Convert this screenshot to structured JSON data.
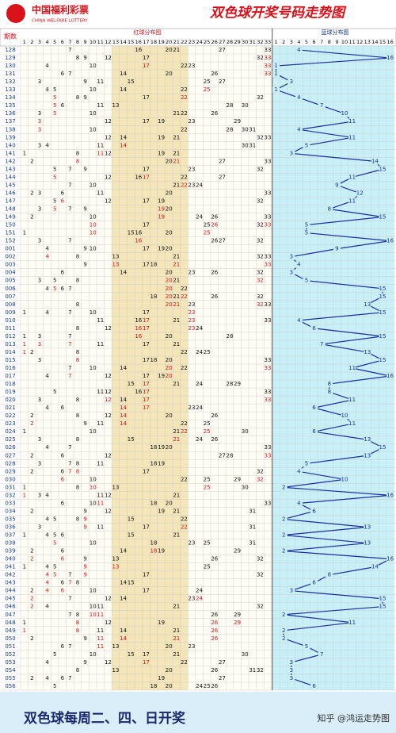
{
  "header": {
    "logo_cn": "中国福利彩票",
    "logo_en": "CHINA WELFARE LOTTERY",
    "title": "双色球开奖号码走势图"
  },
  "columns": {
    "issue_label": "期数",
    "red_label": "红球分布图",
    "blue_label": "蓝球分布图",
    "red_numbers": [
      1,
      2,
      3,
      4,
      5,
      6,
      7,
      8,
      9,
      10,
      11,
      12,
      13,
      14,
      15,
      16,
      17,
      18,
      19,
      20,
      21,
      22,
      23,
      24,
      25,
      26,
      27,
      28,
      29,
      30,
      31,
      32,
      33
    ],
    "blue_numbers": [
      1,
      2,
      3,
      4,
      5,
      6,
      7,
      8,
      9,
      10,
      11,
      12,
      13,
      14,
      15,
      16
    ]
  },
  "rows": [
    {
      "issue": "128",
      "reds": [
        7,
        16,
        20,
        21,
        27,
        33
      ],
      "blue": 4
    },
    {
      "issue": "129",
      "reds": [
        8,
        9,
        12,
        17,
        32,
        33
      ],
      "blue": 16
    },
    {
      "issue": "130",
      "reds": [
        4,
        10,
        17,
        22,
        23,
        33
      ],
      "blue": 1
    },
    {
      "issue": "131",
      "reds": [
        6,
        7,
        14,
        20,
        26,
        33
      ],
      "blue": 1
    },
    {
      "issue": "132",
      "reds": [
        3,
        9,
        11,
        15,
        25,
        27
      ],
      "blue": 3
    },
    {
      "issue": "133",
      "reds": [
        4,
        5,
        10,
        14,
        22,
        25
      ],
      "blue": 1
    },
    {
      "issue": "134",
      "reds": [
        5,
        8,
        9,
        17,
        22,
        32
      ],
      "blue": 4
    },
    {
      "issue": "135",
      "reds": [
        5,
        6,
        11,
        13,
        28,
        30
      ],
      "blue": 7
    },
    {
      "issue": "136",
      "reds": [
        3,
        5,
        10,
        21,
        22,
        26
      ],
      "blue": 10
    },
    {
      "issue": "137",
      "reds": [
        3,
        12,
        17,
        19,
        23,
        29
      ],
      "blue": 11
    },
    {
      "issue": "138",
      "reds": [
        3,
        10,
        22,
        28,
        30,
        31
      ],
      "blue": 4
    },
    {
      "issue": "139",
      "reds": [
        12,
        14,
        19,
        21,
        32,
        33
      ],
      "blue": 11
    },
    {
      "issue": "140",
      "reds": [
        3,
        4,
        11,
        14,
        30,
        31
      ],
      "blue": 5
    },
    {
      "issue": "141",
      "reds": [
        1,
        8,
        11,
        12,
        19,
        21
      ],
      "blue": 3
    },
    {
      "issue": "142",
      "reds": [
        2,
        8,
        20,
        21,
        27,
        33
      ],
      "blue": 14
    },
    {
      "issue": "143",
      "reds": [
        5,
        7,
        9,
        17,
        23,
        32
      ],
      "blue": 15
    },
    {
      "issue": "144",
      "reds": [
        5,
        12,
        16,
        17,
        22,
        27
      ],
      "blue": 11
    },
    {
      "issue": "145",
      "reds": [
        7,
        10,
        21,
        22,
        23,
        24
      ],
      "blue": 9
    },
    {
      "issue": "146",
      "reds": [
        2,
        3,
        6,
        11,
        20,
        33
      ],
      "blue": 12
    },
    {
      "issue": "147",
      "reds": [
        5,
        6,
        12,
        17,
        19,
        32
      ],
      "blue": 11
    },
    {
      "issue": "148",
      "reds": [
        3,
        5,
        7,
        9,
        19,
        20
      ],
      "blue": 8
    },
    {
      "issue": "149",
      "reds": [
        2,
        10,
        19,
        24,
        26,
        33
      ],
      "blue": 15
    },
    {
      "issue": "150",
      "reds": [
        10,
        17,
        25,
        26,
        32,
        33
      ],
      "blue": 5
    },
    {
      "issue": "151",
      "reds": [
        1,
        10,
        15,
        16,
        20,
        25
      ],
      "blue": 5
    },
    {
      "issue": "152",
      "reds": [
        3,
        7,
        16,
        26,
        27,
        32
      ],
      "blue": 16
    },
    {
      "issue": "001",
      "reds": [
        4,
        9,
        10,
        17,
        19,
        20
      ],
      "blue": 9
    },
    {
      "issue": "002",
      "reds": [
        4,
        8,
        13,
        21,
        32,
        33
      ],
      "blue": 3
    },
    {
      "issue": "003",
      "reds": [
        9,
        13,
        17,
        18,
        21,
        33
      ],
      "blue": 4
    },
    {
      "issue": "004",
      "reds": [
        6,
        14,
        20,
        23,
        26,
        32
      ],
      "blue": 3
    },
    {
      "issue": "005",
      "reds": [
        3,
        5,
        8,
        20,
        21,
        32
      ],
      "blue": 5
    },
    {
      "issue": "006",
      "reds": [
        4,
        5,
        6,
        7,
        20,
        22
      ],
      "blue": 15
    },
    {
      "issue": "007",
      "reds": [
        18,
        20,
        21,
        22,
        26,
        32
      ],
      "blue": 15
    },
    {
      "issue": "008",
      "reds": [
        8,
        20,
        21,
        23,
        32,
        33
      ],
      "blue": 13
    },
    {
      "issue": "009",
      "reds": [
        1,
        4,
        7,
        10,
        17,
        23
      ],
      "blue": 15
    },
    {
      "issue": "010",
      "reds": [
        11,
        16,
        17,
        21,
        23,
        33
      ],
      "blue": 4
    },
    {
      "issue": "011",
      "reds": [
        8,
        12,
        16,
        17,
        23,
        24
      ],
      "blue": 6
    },
    {
      "issue": "012",
      "reds": [
        1,
        3,
        7,
        16,
        20,
        28
      ],
      "blue": 15
    },
    {
      "issue": "013",
      "reds": [
        1,
        3,
        7,
        11,
        17,
        21
      ],
      "blue": 7
    },
    {
      "issue": "014",
      "reds": [
        1,
        2,
        8,
        22,
        24,
        25
      ],
      "blue": 13
    },
    {
      "issue": "015",
      "reds": [
        3,
        8,
        17,
        18,
        20,
        33
      ],
      "blue": 15
    },
    {
      "issue": "016",
      "reds": [
        7,
        10,
        14,
        20,
        22,
        33
      ],
      "blue": 11
    },
    {
      "issue": "017",
      "reds": [
        4,
        7,
        12,
        17,
        19,
        20
      ],
      "blue": 16
    },
    {
      "issue": "018",
      "reds": [
        15,
        17,
        21,
        24,
        28,
        29
      ],
      "blue": 8
    },
    {
      "issue": "019",
      "reds": [
        5,
        11,
        12,
        16,
        17,
        33
      ],
      "blue": 8
    },
    {
      "issue": "020",
      "reds": [
        3,
        8,
        12,
        14,
        17,
        33
      ],
      "blue": 11
    },
    {
      "issue": "021",
      "reds": [
        4,
        6,
        14,
        17,
        23,
        24
      ],
      "blue": 6
    },
    {
      "issue": "022",
      "reds": [
        2,
        8,
        12,
        14,
        20,
        26
      ],
      "blue": 10
    },
    {
      "issue": "023",
      "reds": [
        2,
        9,
        11,
        14,
        22,
        25
      ],
      "blue": 11
    },
    {
      "issue": "024",
      "reds": [
        1,
        10,
        21,
        22,
        25,
        30
      ],
      "blue": 6
    },
    {
      "issue": "025",
      "reds": [
        3,
        8,
        15,
        21,
        24,
        26
      ],
      "blue": 13
    },
    {
      "issue": "026",
      "reds": [
        4,
        7,
        18,
        19,
        20,
        33
      ],
      "blue": 15
    },
    {
      "issue": "027",
      "reds": [
        2,
        6,
        12,
        27,
        28,
        33
      ],
      "blue": 13
    },
    {
      "issue": "028",
      "reds": [
        3,
        7,
        8,
        11,
        18,
        19
      ],
      "blue": 5
    },
    {
      "issue": "029",
      "reds": [
        2,
        6,
        7,
        8,
        17,
        32
      ],
      "blue": 4
    },
    {
      "issue": "030",
      "reds": [
        6,
        10,
        22,
        25,
        29,
        32
      ],
      "blue": 10
    },
    {
      "issue": "031",
      "reds": [
        1,
        8,
        10,
        13,
        25,
        30
      ],
      "blue": 2
    },
    {
      "issue": "032",
      "reds": [
        1,
        3,
        4,
        11,
        12,
        21
      ],
      "blue": 16
    },
    {
      "issue": "033",
      "reds": [
        6,
        10,
        11,
        18,
        20,
        33
      ],
      "blue": 4
    },
    {
      "issue": "034",
      "reds": [
        2,
        9,
        12,
        19,
        21,
        31
      ],
      "blue": 6
    },
    {
      "issue": "035",
      "reds": [
        4,
        5,
        8,
        9,
        15,
        22
      ],
      "blue": 2
    },
    {
      "issue": "036",
      "reds": [
        3,
        9,
        11,
        17,
        22,
        31
      ],
      "blue": 13
    },
    {
      "issue": "037",
      "reds": [
        1,
        4,
        5,
        6,
        15,
        21
      ],
      "blue": 2
    },
    {
      "issue": "038",
      "reds": [
        5,
        10,
        18,
        23,
        25,
        31
      ],
      "blue": 13
    },
    {
      "issue": "039",
      "reds": [
        2,
        6,
        14,
        18,
        19,
        29
      ],
      "blue": 2
    },
    {
      "issue": "040",
      "reds": [
        2,
        6,
        9,
        13,
        26,
        32
      ],
      "blue": 16
    },
    {
      "issue": "041",
      "reds": [
        1,
        4,
        5,
        9,
        13,
        25
      ],
      "blue": 14
    },
    {
      "issue": "042",
      "reds": [
        4,
        5,
        7,
        9,
        17,
        32
      ],
      "blue": 8
    },
    {
      "issue": "043",
      "reds": [
        4,
        6,
        7,
        8,
        14,
        15
      ],
      "blue": 6
    },
    {
      "issue": "044",
      "reds": [
        2,
        4,
        6,
        10,
        17,
        24
      ],
      "blue": 3
    },
    {
      "issue": "045",
      "reds": [
        2,
        7,
        12,
        14,
        23,
        24
      ],
      "blue": 15
    },
    {
      "issue": "046",
      "reds": [
        2,
        4,
        10,
        11,
        21,
        32
      ],
      "blue": 15
    },
    {
      "issue": "047",
      "reds": [
        7,
        8,
        10,
        11,
        26,
        29
      ],
      "blue": 2
    },
    {
      "issue": "048",
      "reds": [
        1,
        8,
        12,
        19,
        26,
        29
      ],
      "blue": 11
    },
    {
      "issue": "049",
      "reds": [
        1,
        8,
        11,
        14,
        21,
        26
      ],
      "blue": 2
    },
    {
      "issue": "050",
      "reds": [
        2,
        9,
        11,
        14,
        21,
        26
      ],
      "blue": 2
    },
    {
      "issue": "051",
      "reds": [
        6,
        7,
        11,
        13,
        20,
        23
      ],
      "blue": 5
    },
    {
      "issue": "052",
      "reds": [
        5,
        10,
        15,
        17,
        21,
        30
      ],
      "blue": 7
    },
    {
      "issue": "053",
      "reds": [
        4,
        9,
        12,
        17,
        22,
        27
      ],
      "blue": 3
    },
    {
      "issue": "054",
      "reds": [
        8,
        13,
        20,
        26,
        31,
        32
      ],
      "blue": 3
    },
    {
      "issue": "055",
      "reds": [
        2,
        4,
        6,
        7,
        19,
        27
      ],
      "blue": 3
    },
    {
      "issue": "056",
      "reds": [
        5,
        18,
        20,
        24,
        25,
        26
      ],
      "blue": 6
    }
  ],
  "footer": "双色球每周二、四、日开奖",
  "watermark": "知乎 @鸿运走势图"
}
